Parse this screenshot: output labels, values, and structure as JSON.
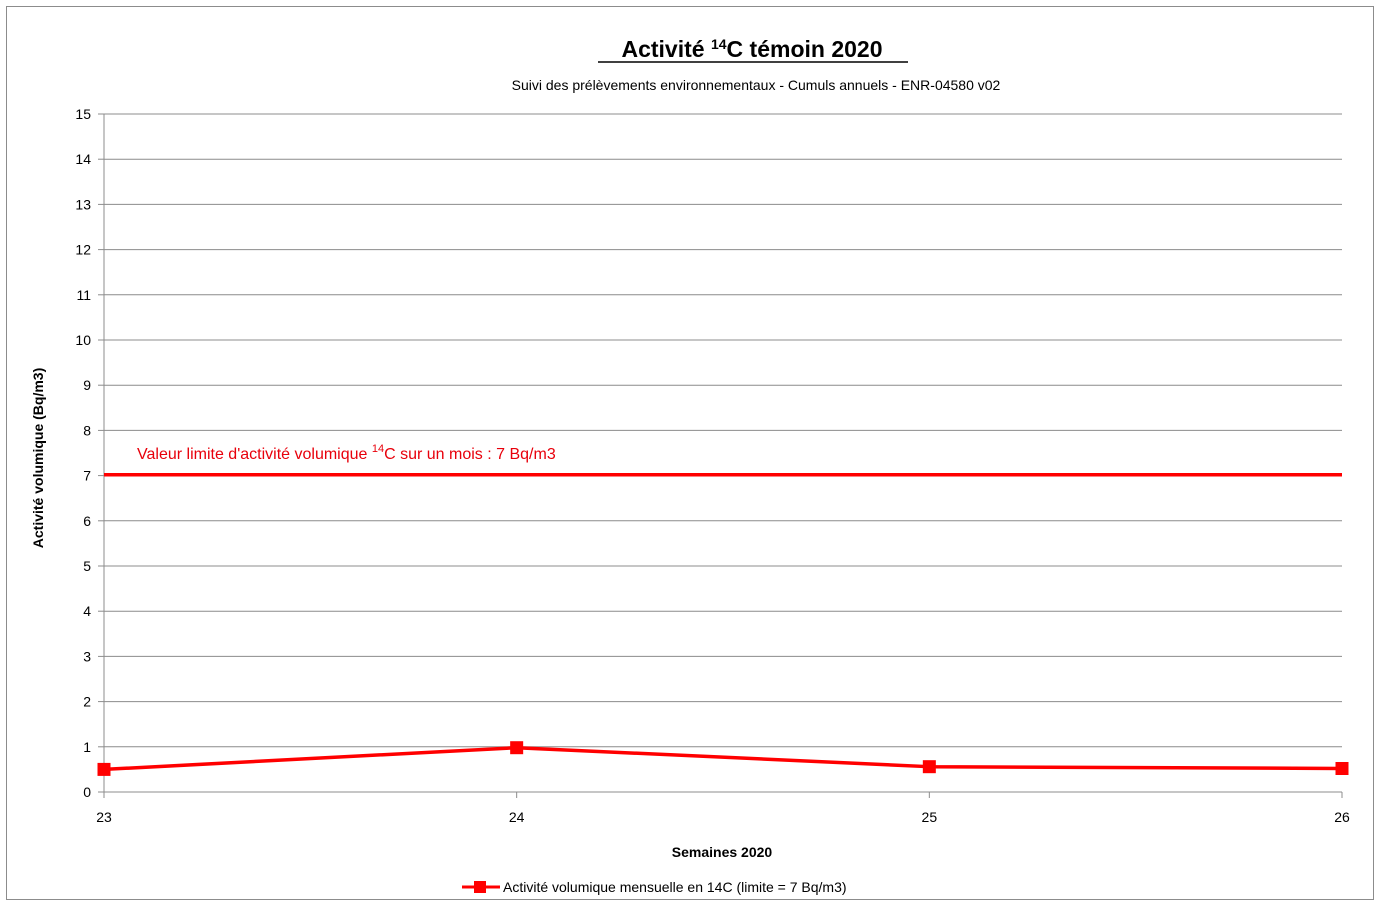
{
  "chart_data": {
    "type": "line",
    "title": {
      "prefix": "Activité ",
      "superscript": "14",
      "suffix": "C témoin 2020"
    },
    "subtitle": "Suivi des prélèvements environnementaux - Cumuls annuels - ENR-04580 v02",
    "xlabel": "Semaines 2020",
    "ylabel": "Activité volumique (Bq/m3)",
    "x_ticks": [
      "23",
      "24",
      "25",
      "26"
    ],
    "y_ticks": [
      "0",
      "1",
      "2",
      "3",
      "4",
      "5",
      "6",
      "7",
      "8",
      "9",
      "10",
      "11",
      "12",
      "13",
      "14",
      "15"
    ],
    "xlim": [
      23,
      26
    ],
    "ylim": [
      0,
      15
    ],
    "grid": true,
    "legend_position": "bottom",
    "series": [
      {
        "name": "Activité  volumique mensuelle en 14C  (limite = 7 Bq/m3)",
        "color": "#ff0000",
        "marker": "square",
        "x": [
          23,
          24,
          25,
          26
        ],
        "values": [
          0.5,
          0.98,
          0.56,
          0.52
        ]
      }
    ],
    "limit_line": {
      "value": 7.02,
      "color": "#ff0000",
      "label": {
        "prefix": "Valeur limite d'activité volumique ",
        "superscript": "14",
        "suffix": "C sur un mois : 7 Bq/m3"
      }
    }
  }
}
